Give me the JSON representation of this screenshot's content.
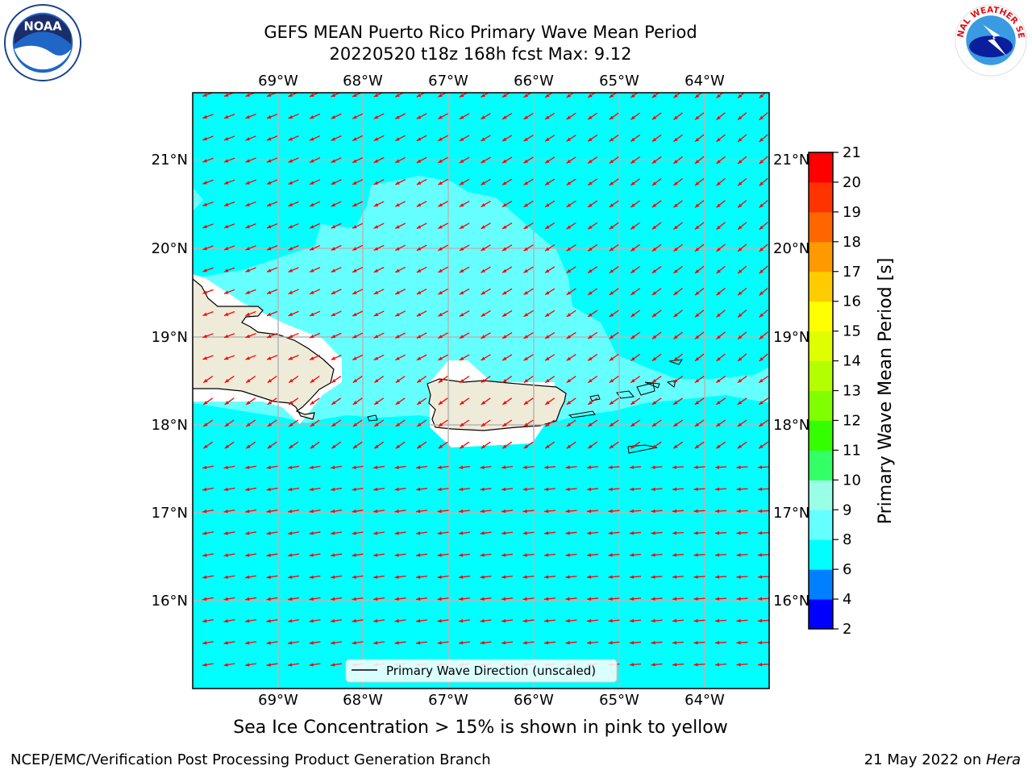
{
  "title_line1": "GEFS MEAN Puerto Rico Primary Wave Mean Period",
  "title_line2": "20220520 t18z 168h fcst   Max: 9.12",
  "map": {
    "lon_labels": [
      "69°W",
      "68°W",
      "67°W",
      "66°W",
      "65°W",
      "64°W"
    ],
    "lat_labels": [
      "21°N",
      "20°N",
      "19°N",
      "18°N",
      "17°N",
      "16°N"
    ],
    "legend_label": "Primary Wave Direction (unscaled)",
    "ocean_color": "#00ffff",
    "light_zone_color": "#66ffff",
    "land_color": "#efebd9",
    "arrow_color": "#ff0000"
  },
  "colorbar": {
    "label": "Primary Wave Mean Period [s]",
    "ticks": [
      "2",
      "4",
      "6",
      "8",
      "9",
      "10",
      "11",
      "12",
      "13",
      "14",
      "15",
      "16",
      "17",
      "18",
      "19",
      "20",
      "21"
    ],
    "colors": [
      "#0000ff",
      "#0080ff",
      "#00ffff",
      "#66ffff",
      "#99ffe6",
      "#33ff66",
      "#33ff00",
      "#80ff00",
      "#b3ff00",
      "#ddff00",
      "#ffff00",
      "#ffcc00",
      "#ff9900",
      "#ff6600",
      "#ff3300",
      "#ff0000"
    ]
  },
  "caption": "Sea Ice Concentration > 15% is shown in pink to yellow",
  "footer": {
    "left": "NCEP/EMC/Verification Post Processing Product Generation Branch",
    "right_prefix": "21 May 2022 on ",
    "right_host": "Hera"
  },
  "logos": {
    "noaa": "NOAA",
    "nws_top": "NATIONAL WEATHER SERVICE"
  }
}
